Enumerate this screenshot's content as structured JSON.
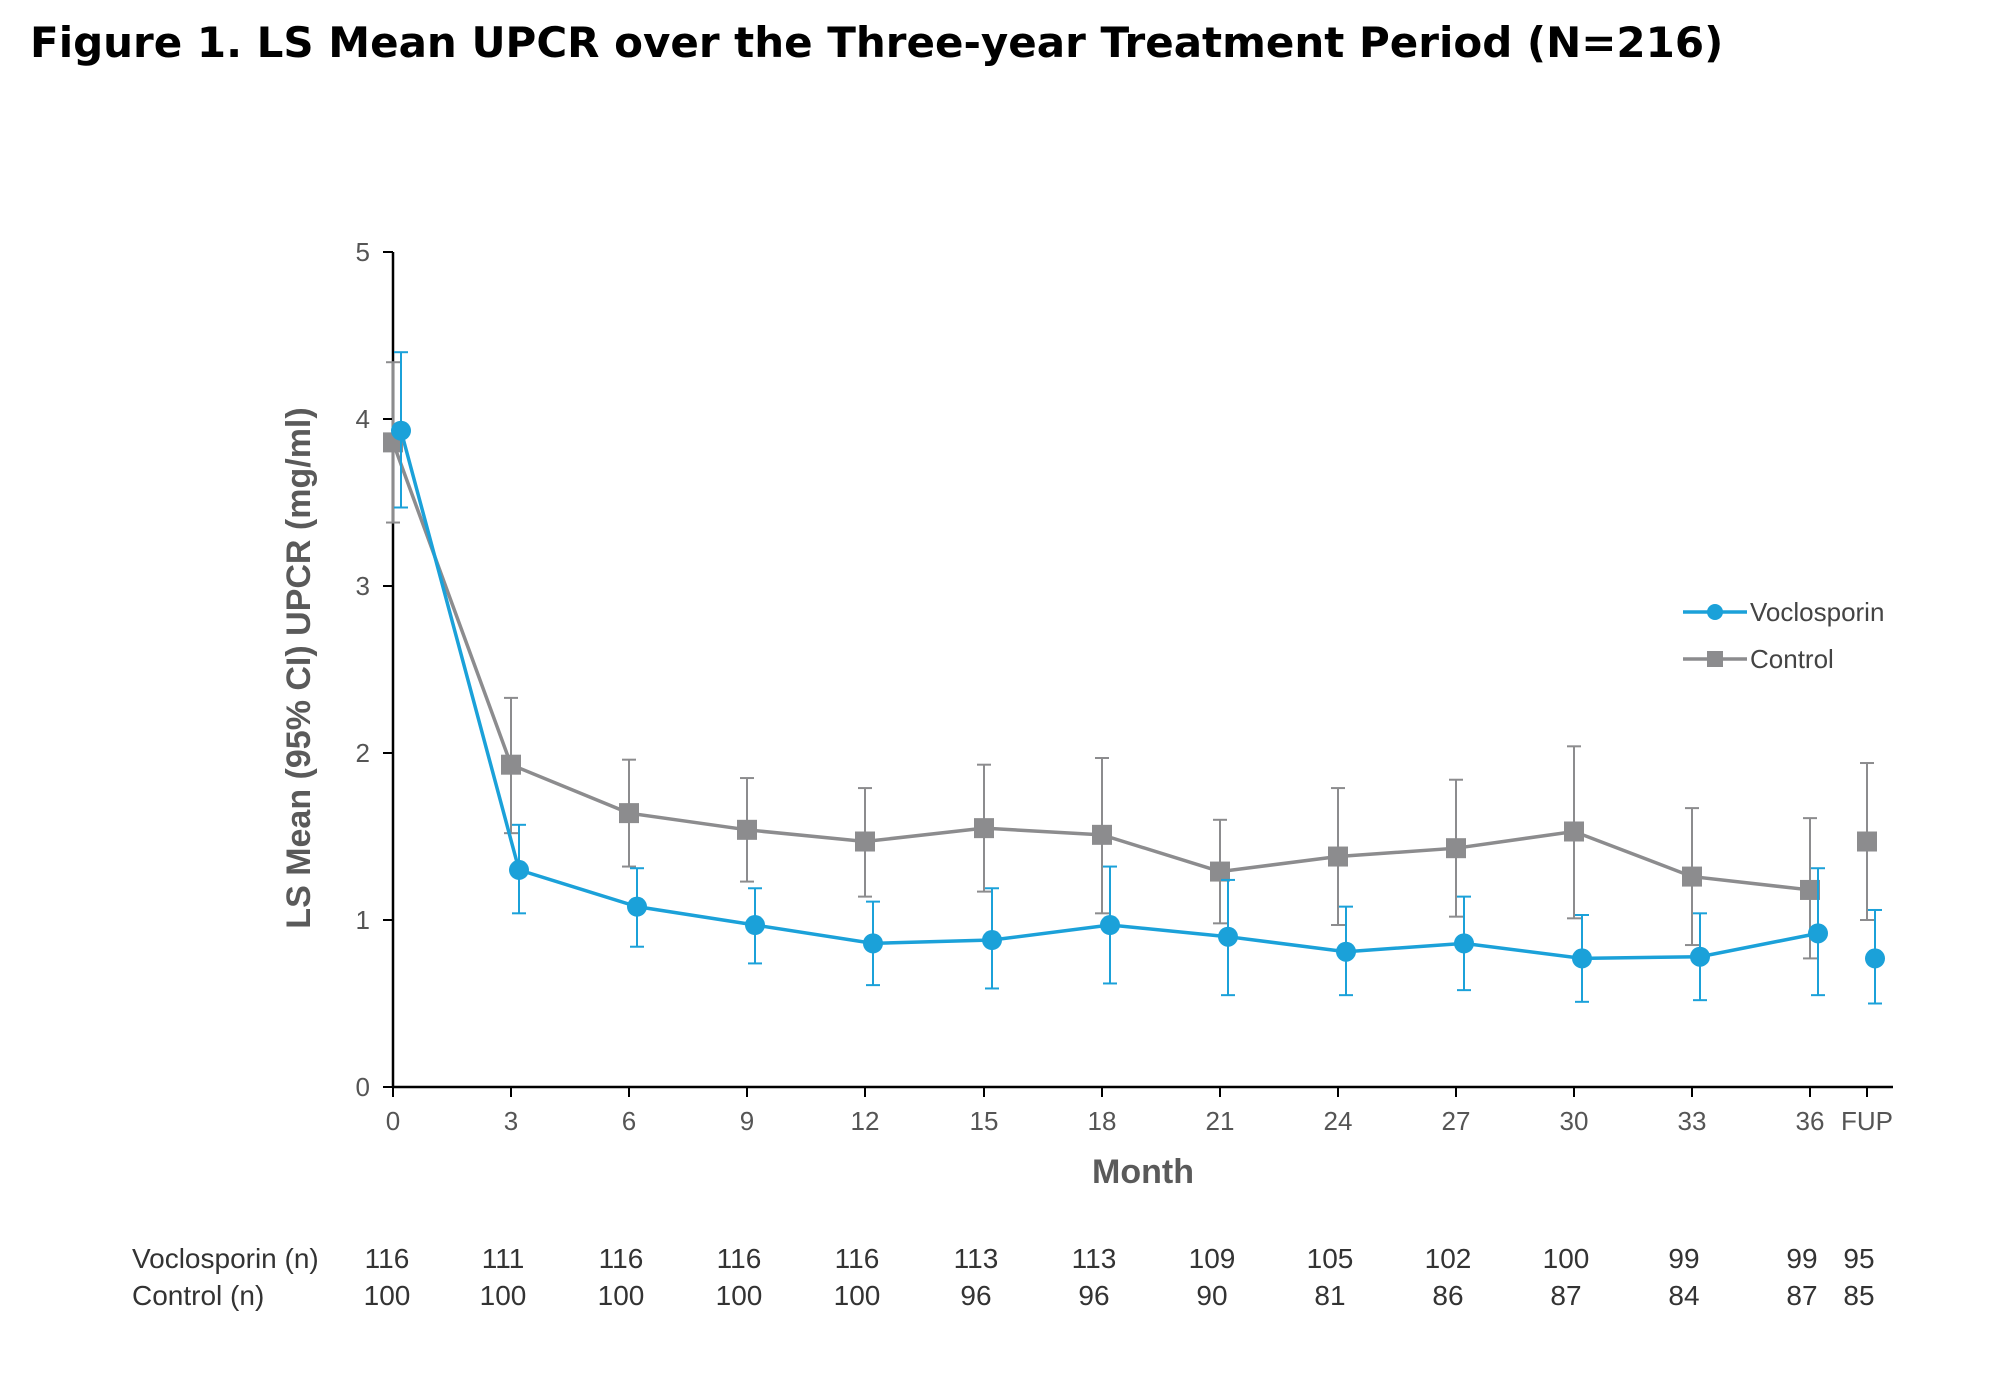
{
  "title": "Figure 1. LS Mean UPCR over the Three-year Treatment Period (N=216)",
  "chart_data": {
    "type": "line",
    "title": "Figure 1. LS Mean UPCR over the Three-year Treatment Period (N=216)",
    "xlabel": "Month",
    "ylabel": "LS Mean (95% CI) UPCR (mg/ml)",
    "ylim": [
      0,
      5
    ],
    "yticks": [
      "0",
      "1",
      "2",
      "3",
      "4",
      "5"
    ],
    "x": [
      "0",
      "3",
      "6",
      "9",
      "12",
      "15",
      "18",
      "21",
      "24",
      "27",
      "30",
      "33",
      "36",
      "FUP"
    ],
    "series": [
      {
        "name": "Voclosporin",
        "color": "#1ba1d9",
        "marker": "circle",
        "values": [
          3.93,
          1.3,
          1.08,
          0.97,
          0.86,
          0.88,
          0.97,
          0.9,
          0.81,
          0.86,
          0.77,
          0.78,
          0.92,
          0.77
        ],
        "ci_lower": [
          3.47,
          1.04,
          0.84,
          0.74,
          0.61,
          0.59,
          0.62,
          0.55,
          0.55,
          0.58,
          0.51,
          0.52,
          0.55,
          0.5
        ],
        "ci_upper": [
          4.4,
          1.57,
          1.31,
          1.19,
          1.11,
          1.19,
          1.32,
          1.24,
          1.08,
          1.14,
          1.03,
          1.04,
          1.31,
          1.06
        ],
        "connect_last": false
      },
      {
        "name": "Control",
        "color": "#8c8c8e",
        "marker": "square",
        "values": [
          3.86,
          1.93,
          1.64,
          1.54,
          1.47,
          1.55,
          1.51,
          1.29,
          1.38,
          1.43,
          1.53,
          1.26,
          1.18,
          1.47
        ],
        "ci_lower": [
          3.38,
          1.52,
          1.32,
          1.23,
          1.14,
          1.17,
          1.04,
          0.98,
          0.97,
          1.02,
          1.01,
          0.85,
          0.77,
          1.0
        ],
        "ci_upper": [
          4.34,
          2.33,
          1.96,
          1.85,
          1.79,
          1.93,
          1.97,
          1.6,
          1.79,
          1.84,
          2.04,
          1.67,
          1.61,
          1.94
        ],
        "connect_last": false
      }
    ],
    "legend": {
      "placement": "right",
      "entries": [
        "Voclosporin",
        "Control"
      ]
    },
    "n_table": {
      "rows": [
        {
          "label": "Voclosporin (n)",
          "values": [
            "116",
            "111",
            "116",
            "116",
            "116",
            "113",
            "113",
            "109",
            "105",
            "102",
            "100",
            "99",
            "99",
            "95"
          ]
        },
        {
          "label": "Control (n)",
          "values": [
            "100",
            "100",
            "100",
            "100",
            "100",
            "96",
            "96",
            "90",
            "81",
            "86",
            "87",
            "84",
            "87",
            "85"
          ]
        }
      ]
    }
  }
}
